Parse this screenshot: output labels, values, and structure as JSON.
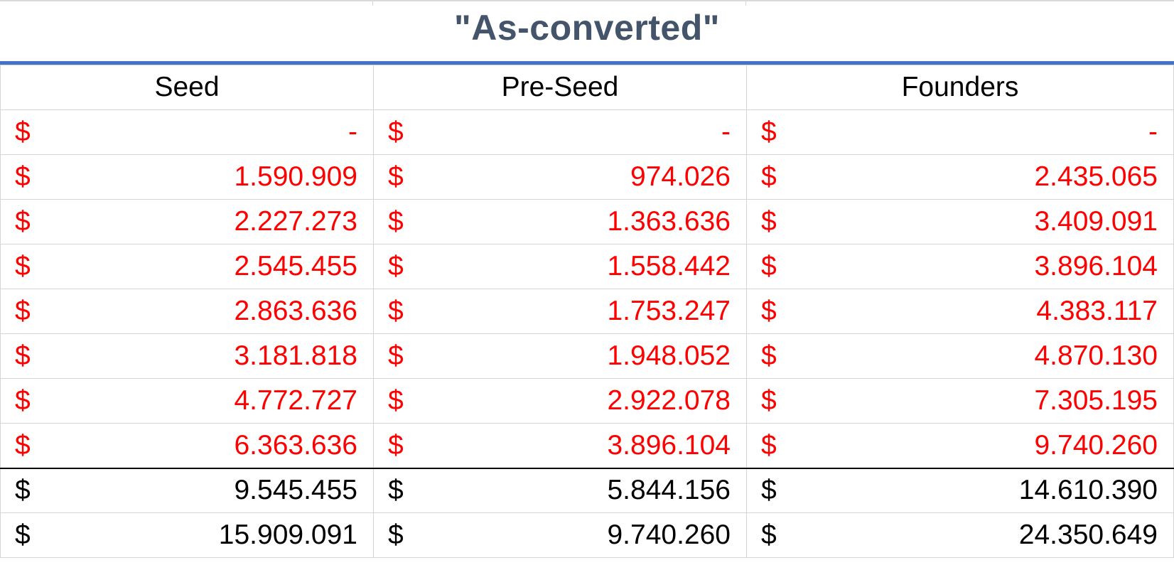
{
  "title": "\"As-converted\"",
  "columns": [
    "Seed",
    "Pre-Seed",
    "Founders"
  ],
  "currency_symbol": "$",
  "rows": [
    {
      "style": "red",
      "values": [
        "-",
        "-",
        "-"
      ]
    },
    {
      "style": "red",
      "values": [
        "1.590.909",
        "974.026",
        "2.435.065"
      ]
    },
    {
      "style": "red",
      "values": [
        "2.227.273",
        "1.363.636",
        "3.409.091"
      ]
    },
    {
      "style": "red",
      "values": [
        "2.545.455",
        "1.558.442",
        "3.896.104"
      ]
    },
    {
      "style": "red",
      "values": [
        "2.863.636",
        "1.753.247",
        "4.383.117"
      ]
    },
    {
      "style": "red",
      "values": [
        "3.181.818",
        "1.948.052",
        "4.870.130"
      ]
    },
    {
      "style": "red",
      "values": [
        "4.772.727",
        "2.922.078",
        "7.305.195"
      ]
    },
    {
      "style": "red",
      "values": [
        "6.363.636",
        "3.896.104",
        "9.740.260"
      ]
    },
    {
      "style": "black",
      "values": [
        "9.545.455",
        "5.844.156",
        "14.610.390"
      ]
    },
    {
      "style": "black",
      "values": [
        "15.909.091",
        "9.740.260",
        "24.350.649"
      ]
    }
  ],
  "colors": {
    "title": "#44546a",
    "title_rule": "#4472c4",
    "negative_red": "#ff0000",
    "text_black": "#000000",
    "gridline": "#d4d4d4"
  }
}
